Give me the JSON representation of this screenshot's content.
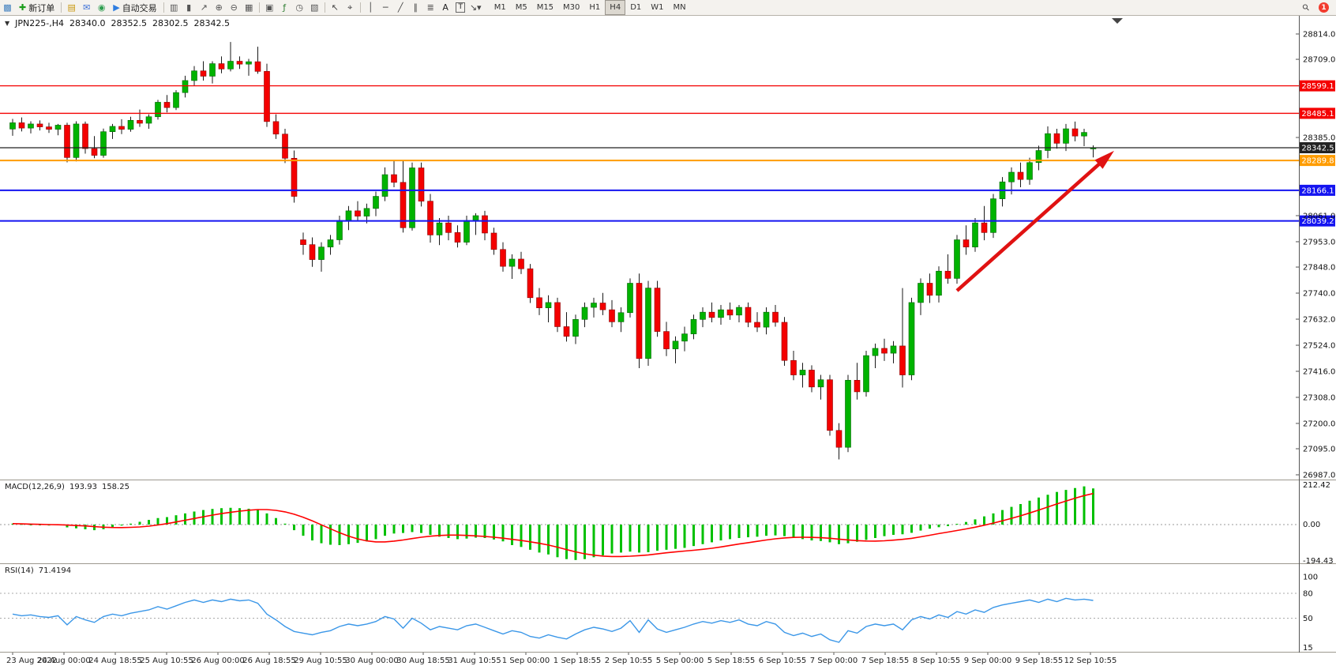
{
  "toolbar": {
    "timeframes": [
      "M1",
      "M5",
      "M15",
      "M30",
      "H1",
      "H4",
      "D1",
      "W1",
      "MN"
    ],
    "active_timeframe": "H4",
    "notification_badge": "1",
    "items": [
      {
        "type": "icon",
        "name": "app-chart-icon",
        "glyph": "▩",
        "color": "#3f7fbf"
      },
      {
        "type": "button",
        "name": "new-order-button",
        "glyph": "✚",
        "color": "#1a9c1a",
        "label": "新订单"
      },
      {
        "type": "sep"
      },
      {
        "type": "icon",
        "name": "wallet-icon",
        "glyph": "▤",
        "color": "#c8960c"
      },
      {
        "type": "icon",
        "name": "chat-icon",
        "glyph": "✉",
        "color": "#3a6fd8"
      },
      {
        "type": "icon",
        "name": "community-icon",
        "glyph": "◉",
        "color": "#2e9e4f"
      },
      {
        "type": "button",
        "name": "auto-trading-button",
        "glyph": "▶",
        "color": "#2e7de0",
        "label": "自动交易"
      },
      {
        "type": "sep"
      },
      {
        "type": "icon",
        "name": "bar-chart-mode-icon",
        "glyph": "▥",
        "color": "#555"
      },
      {
        "type": "icon",
        "name": "candlestick-mode-icon",
        "glyph": "▮",
        "color": "#555"
      },
      {
        "type": "icon",
        "name": "line-chart-mode-icon",
        "glyph": "↗",
        "color": "#555"
      },
      {
        "type": "icon",
        "name": "zoom-in-icon",
        "glyph": "⊕",
        "color": "#555"
      },
      {
        "type": "icon",
        "name": "zoom-out-icon",
        "glyph": "⊖",
        "color": "#555"
      },
      {
        "type": "icon",
        "name": "tile-windows-icon",
        "glyph": "▦",
        "color": "#555"
      },
      {
        "type": "sep"
      },
      {
        "type": "icon",
        "name": "new-chart-icon",
        "glyph": "▣",
        "color": "#555"
      },
      {
        "type": "icon",
        "name": "indicators-icon",
        "glyph": "ƒ",
        "color": "#2e7d32"
      },
      {
        "type": "icon",
        "name": "periods-icon",
        "glyph": "◷",
        "color": "#555"
      },
      {
        "type": "icon",
        "name": "templates-icon",
        "glyph": "▧",
        "color": "#555"
      },
      {
        "type": "sep"
      },
      {
        "type": "icon",
        "name": "cursor-icon",
        "glyph": "↖",
        "color": "#444"
      },
      {
        "type": "icon",
        "name": "crosshair-icon",
        "glyph": "⌖",
        "color": "#444"
      },
      {
        "type": "sep"
      },
      {
        "type": "icon",
        "name": "vertical-line-icon",
        "glyph": "│",
        "color": "#444"
      },
      {
        "type": "icon",
        "name": "horizontal-line-icon",
        "glyph": "─",
        "color": "#444"
      },
      {
        "type": "icon",
        "name": "trendline-icon",
        "glyph": "╱",
        "color": "#444"
      },
      {
        "type": "icon",
        "name": "channel-icon",
        "glyph": "∥",
        "color": "#444"
      },
      {
        "type": "icon",
        "name": "fibonacci-icon",
        "glyph": "≣",
        "color": "#444"
      },
      {
        "type": "icon",
        "name": "text-tool-icon",
        "glyph": "A",
        "color": "#222"
      },
      {
        "type": "icon",
        "name": "text-label-tool-icon",
        "glyph": "T",
        "color": "#222",
        "boxed": true
      },
      {
        "type": "icon",
        "name": "arrow-tools-icon",
        "glyph": "↘▾",
        "color": "#444"
      },
      {
        "type": "timeframes"
      },
      {
        "type": "spacer"
      },
      {
        "type": "icon",
        "name": "search-icon",
        "glyph": "⚲",
        "color": "#444",
        "rotate": true
      },
      {
        "type": "badge",
        "name": "notification-badge",
        "label": "1"
      }
    ]
  },
  "chart_header": {
    "collapse_icon": "▼",
    "symbol_period": "JPN225-,H4",
    "open": "28340.0",
    "high": "28352.5",
    "low": "28302.5",
    "close": "28342.5"
  },
  "macd_panel": {
    "label": "MACD(12,26,9)",
    "value_main": "193.93",
    "value_signal": "158.25",
    "axis": [
      "212.42",
      "0.00",
      "-194.43"
    ]
  },
  "rsi_panel": {
    "label": "RSI(14)",
    "value": "71.4194",
    "axis": [
      "100",
      "80",
      "50",
      "15"
    ]
  },
  "price_axis": {
    "ticks": [
      28814.0,
      28709.0,
      28385.0,
      28061.0,
      27953.0,
      27848.0,
      27740.0,
      27632.0,
      27524.0,
      27416.0,
      27308.0,
      27200.0,
      27095.0,
      26987.0
    ]
  },
  "time_axis": {
    "labels": [
      "23 Aug 2022",
      "24 Aug 00:00",
      "24 Aug 18:55",
      "25 Aug 10:55",
      "26 Aug 00:00",
      "26 Aug 18:55",
      "29 Aug 10:55",
      "30 Aug 00:00",
      "30 Aug 18:55",
      "31 Aug 10:55",
      "1 Sep 00:00",
      "1 Sep 18:55",
      "2 Sep 10:55",
      "5 Sep 00:00",
      "5 Sep 18:55",
      "6 Sep 10:55",
      "7 Sep 00:00",
      "7 Sep 18:55",
      "8 Sep 10:55",
      "9 Sep 00:00",
      "9 Sep 18:55",
      "12 Sep 10:55"
    ]
  },
  "chart_data": {
    "type": "candlestick",
    "symbol": "JPN225-",
    "period": "H4",
    "ohlc_current": [
      28340.0,
      28352.5,
      28302.5,
      28342.5
    ],
    "y_range": [
      26987.0,
      28814.0
    ],
    "colors": {
      "up": "#00b300",
      "down": "#f40000",
      "wick": "#1a1a1a"
    },
    "candles": [
      [
        28420,
        28462,
        28392,
        28446
      ],
      [
        28446,
        28468,
        28410,
        28424
      ],
      [
        28424,
        28452,
        28402,
        28441
      ],
      [
        28441,
        28456,
        28414,
        28429
      ],
      [
        28429,
        28446,
        28404,
        28419
      ],
      [
        28419,
        28441,
        28394,
        28436
      ],
      [
        28436,
        28446,
        28282,
        28302
      ],
      [
        28302,
        28452,
        28286,
        28441
      ],
      [
        28441,
        28451,
        28318,
        28339
      ],
      [
        28339,
        28391,
        28299,
        28311
      ],
      [
        28311,
        28422,
        28301,
        28409
      ],
      [
        28409,
        28441,
        28379,
        28431
      ],
      [
        28431,
        28461,
        28399,
        28419
      ],
      [
        28419,
        28471,
        28409,
        28456
      ],
      [
        28456,
        28501,
        28429,
        28444
      ],
      [
        28444,
        28481,
        28421,
        28471
      ],
      [
        28471,
        28541,
        28459,
        28531
      ],
      [
        28531,
        28561,
        28489,
        28509
      ],
      [
        28509,
        28581,
        28499,
        28571
      ],
      [
        28571,
        28641,
        28551,
        28621
      ],
      [
        28621,
        28681,
        28601,
        28661
      ],
      [
        28661,
        28701,
        28621,
        28639
      ],
      [
        28639,
        28701,
        28609,
        28691
      ],
      [
        28691,
        28721,
        28651,
        28669
      ],
      [
        28669,
        28781,
        28659,
        28701
      ],
      [
        28701,
        28721,
        28669,
        28689
      ],
      [
        28689,
        28711,
        28641,
        28699
      ],
      [
        28699,
        28761,
        28649,
        28659
      ],
      [
        28659,
        28691,
        28429,
        28451
      ],
      [
        28451,
        28481,
        28379,
        28399
      ],
      [
        28399,
        28421,
        28279,
        28299
      ],
      [
        28299,
        28331,
        28115,
        28141
      ],
      [
        27961,
        27991,
        27899,
        27941
      ],
      [
        27941,
        27971,
        27849,
        27879
      ],
      [
        27879,
        27951,
        27829,
        27931
      ],
      [
        27931,
        27981,
        27899,
        27961
      ],
      [
        27961,
        28061,
        27941,
        28041
      ],
      [
        28041,
        28101,
        28001,
        28081
      ],
      [
        28081,
        28121,
        28039,
        28059
      ],
      [
        28059,
        28111,
        28029,
        28091
      ],
      [
        28091,
        28161,
        28059,
        28141
      ],
      [
        28141,
        28261,
        28121,
        28231
      ],
      [
        28231,
        28291,
        28179,
        28199
      ],
      [
        28199,
        28289,
        27991,
        28011
      ],
      [
        28011,
        28281,
        27999,
        28259
      ],
      [
        28259,
        28281,
        28099,
        28121
      ],
      [
        28121,
        28151,
        27949,
        27981
      ],
      [
        27981,
        28051,
        27939,
        28031
      ],
      [
        28031,
        28061,
        27959,
        27991
      ],
      [
        27991,
        28021,
        27929,
        27951
      ],
      [
        27951,
        28061,
        27939,
        28041
      ],
      [
        28041,
        28071,
        27981,
        28061
      ],
      [
        28061,
        28081,
        27959,
        27989
      ],
      [
        27989,
        28011,
        27899,
        27921
      ],
      [
        27921,
        27951,
        27829,
        27851
      ],
      [
        27851,
        27901,
        27799,
        27881
      ],
      [
        27881,
        27911,
        27819,
        27841
      ],
      [
        27841,
        27861,
        27699,
        27721
      ],
      [
        27721,
        27761,
        27649,
        27679
      ],
      [
        27679,
        27731,
        27619,
        27701
      ],
      [
        27701,
        27721,
        27579,
        27601
      ],
      [
        27601,
        27661,
        27539,
        27561
      ],
      [
        27561,
        27651,
        27529,
        27631
      ],
      [
        27631,
        27701,
        27599,
        27681
      ],
      [
        27681,
        27721,
        27639,
        27699
      ],
      [
        27699,
        27741,
        27649,
        27671
      ],
      [
        27671,
        27711,
        27599,
        27621
      ],
      [
        27621,
        27681,
        27579,
        27659
      ],
      [
        27659,
        27801,
        27639,
        27781
      ],
      [
        27781,
        27821,
        27429,
        27469
      ],
      [
        27469,
        27791,
        27439,
        27761
      ],
      [
        27761,
        27791,
        27559,
        27581
      ],
      [
        27581,
        27621,
        27479,
        27509
      ],
      [
        27509,
        27561,
        27449,
        27541
      ],
      [
        27541,
        27601,
        27499,
        27571
      ],
      [
        27571,
        27651,
        27549,
        27631
      ],
      [
        27631,
        27681,
        27599,
        27661
      ],
      [
        27661,
        27701,
        27619,
        27639
      ],
      [
        27639,
        27691,
        27609,
        27671
      ],
      [
        27671,
        27701,
        27629,
        27649
      ],
      [
        27649,
        27691,
        27619,
        27681
      ],
      [
        27681,
        27701,
        27599,
        27619
      ],
      [
        27619,
        27661,
        27579,
        27599
      ],
      [
        27599,
        27681,
        27569,
        27661
      ],
      [
        27661,
        27691,
        27601,
        27619
      ],
      [
        27619,
        27641,
        27439,
        27461
      ],
      [
        27461,
        27501,
        27379,
        27401
      ],
      [
        27401,
        27451,
        27349,
        27421
      ],
      [
        27421,
        27441,
        27329,
        27351
      ],
      [
        27351,
        27401,
        27299,
        27381
      ],
      [
        27381,
        27401,
        27149,
        27171
      ],
      [
        27171,
        27201,
        27051,
        27101
      ],
      [
        27101,
        27401,
        27081,
        27379
      ],
      [
        27379,
        27451,
        27299,
        27331
      ],
      [
        27331,
        27501,
        27311,
        27481
      ],
      [
        27481,
        27531,
        27429,
        27511
      ],
      [
        27511,
        27551,
        27459,
        27491
      ],
      [
        27491,
        27541,
        27449,
        27521
      ],
      [
        27521,
        27761,
        27349,
        27401
      ],
      [
        27401,
        27721,
        27379,
        27701
      ],
      [
        27701,
        27801,
        27649,
        27781
      ],
      [
        27781,
        27821,
        27699,
        27731
      ],
      [
        27731,
        27851,
        27701,
        27831
      ],
      [
        27831,
        27901,
        27779,
        27801
      ],
      [
        27801,
        27981,
        27779,
        27961
      ],
      [
        27961,
        28021,
        27899,
        27931
      ],
      [
        27931,
        28051,
        27911,
        28031
      ],
      [
        28031,
        28101,
        27959,
        27991
      ],
      [
        27991,
        28151,
        27969,
        28131
      ],
      [
        28131,
        28221,
        28099,
        28201
      ],
      [
        28201,
        28261,
        28149,
        28241
      ],
      [
        28241,
        28281,
        28179,
        28211
      ],
      [
        28211,
        28301,
        28189,
        28281
      ],
      [
        28281,
        28351,
        28249,
        28331
      ],
      [
        28331,
        28431,
        28299,
        28401
      ],
      [
        28401,
        28421,
        28339,
        28361
      ],
      [
        28361,
        28441,
        28329,
        28421
      ],
      [
        28421,
        28451,
        28369,
        28391
      ],
      [
        28391,
        28421,
        28349,
        28406
      ],
      [
        28340,
        28352.5,
        28302.5,
        28342.5
      ]
    ],
    "hlines": [
      {
        "price": 28599.1,
        "label": "28599.1",
        "color": "#f40000",
        "width": 1.3
      },
      {
        "price": 28485.1,
        "label": "28485.1",
        "color": "#f40000",
        "width": 1.3
      },
      {
        "price": 28342.5,
        "label": "28342.5",
        "color": "#222222",
        "width": 1.2,
        "role": "current-price"
      },
      {
        "price": 28289.8,
        "label": "28289.8",
        "color": "#ff9c00",
        "width": 2
      },
      {
        "price": 28166.1,
        "label": "28166.1",
        "color": "#1414f0",
        "width": 2
      },
      {
        "price": 28039.2,
        "label": "28039.2",
        "color": "#1414f0",
        "width": 2
      }
    ],
    "trend_arrow": {
      "from_bar": 104,
      "from_price": 27750,
      "to_bar": 121.3,
      "to_price": 28330,
      "color": "#e01212"
    },
    "indicators": [
      {
        "name": "MACD",
        "params": [
          12,
          26,
          9
        ],
        "histogram_color": "#00c000",
        "signal_color": "#ff0000",
        "signal_period": 9,
        "axis_range": [
          -194.43,
          212.42
        ],
        "histogram": [
          5,
          3,
          0,
          -3,
          -5,
          -4,
          -15,
          -20,
          -25,
          -30,
          -25,
          -15,
          -5,
          5,
          15,
          25,
          35,
          40,
          50,
          60,
          70,
          78,
          84,
          88,
          90,
          88,
          85,
          80,
          60,
          35,
          5,
          -30,
          -60,
          -85,
          -100,
          -108,
          -110,
          -105,
          -98,
          -90,
          -78,
          -60,
          -48,
          -45,
          -40,
          -45,
          -55,
          -65,
          -72,
          -78,
          -75,
          -70,
          -72,
          -80,
          -90,
          -110,
          -120,
          -135,
          -150,
          -160,
          -175,
          -185,
          -190,
          -185,
          -175,
          -165,
          -155,
          -150,
          -145,
          -150,
          -148,
          -140,
          -135,
          -130,
          -125,
          -115,
          -105,
          -95,
          -85,
          -78,
          -72,
          -68,
          -65,
          -60,
          -58,
          -62,
          -70,
          -78,
          -85,
          -88,
          -95,
          -105,
          -100,
          -92,
          -82,
          -72,
          -62,
          -55,
          -52,
          -44,
          -32,
          -22,
          -14,
          -8,
          4,
          14,
          28,
          44,
          60,
          78,
          95,
          110,
          128,
          145,
          160,
          175,
          186,
          196,
          205,
          193.93
        ]
      },
      {
        "name": "RSI",
        "params": [
          14
        ],
        "color": "#3b97e8",
        "levels": [
          80,
          50
        ],
        "axis_range": [
          15,
          100
        ],
        "values": [
          55,
          53,
          54,
          52,
          51,
          53,
          42,
          52,
          48,
          45,
          52,
          55,
          53,
          56,
          58,
          60,
          64,
          61,
          65,
          69,
          72,
          69,
          72,
          70,
          73,
          71,
          72,
          68,
          55,
          48,
          40,
          34,
          32,
          30,
          33,
          35,
          40,
          43,
          41,
          43,
          46,
          52,
          49,
          38,
          50,
          44,
          36,
          40,
          38,
          36,
          41,
          43,
          39,
          35,
          31,
          35,
          33,
          28,
          26,
          30,
          27,
          25,
          31,
          36,
          39,
          37,
          34,
          38,
          47,
          33,
          48,
          37,
          33,
          36,
          39,
          43,
          46,
          44,
          47,
          45,
          48,
          43,
          41,
          46,
          43,
          33,
          29,
          32,
          28,
          31,
          24,
          21,
          35,
          32,
          40,
          43,
          41,
          43,
          36,
          48,
          52,
          49,
          54,
          51,
          58,
          55,
          60,
          57,
          63,
          66,
          68,
          70,
          72,
          69,
          73,
          70,
          74,
          72,
          73,
          71.4194
        ]
      }
    ]
  }
}
